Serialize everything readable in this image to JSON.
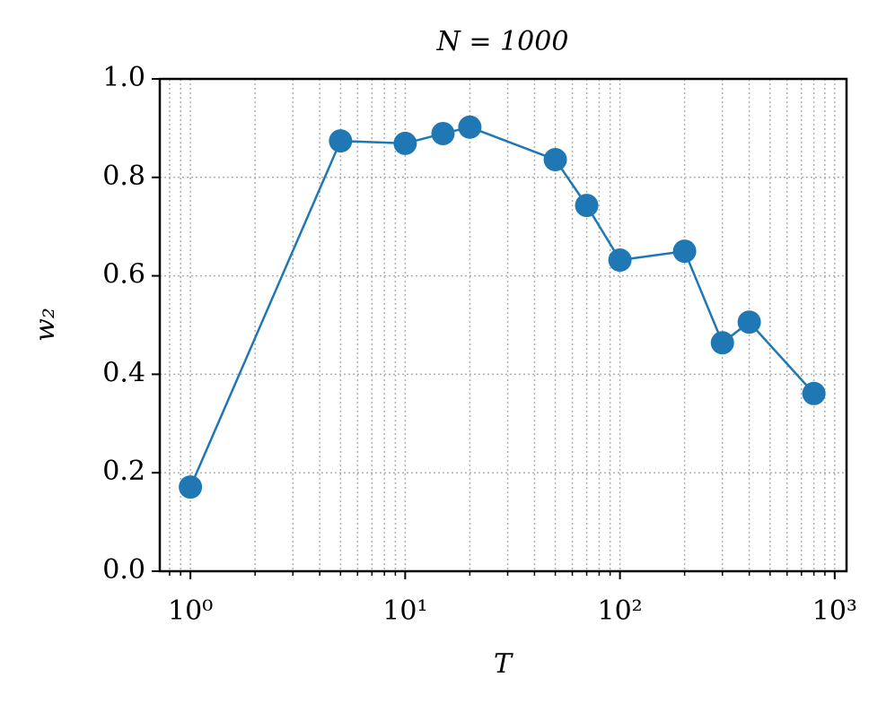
{
  "chart_data": {
    "type": "line",
    "title": "N = 1000",
    "x_label": "T",
    "y_label": "w₂",
    "x": [
      1,
      5,
      10,
      15,
      20,
      50,
      70,
      100,
      200,
      300,
      400,
      800
    ],
    "series": [
      {
        "color": "#1f77b4",
        "values": [
          0.171,
          0.874,
          0.869,
          0.889,
          0.902,
          0.836,
          0.743,
          0.632,
          0.65,
          0.464,
          0.506,
          0.361
        ]
      }
    ],
    "x_scale": "log",
    "xlim": [
      0.72,
      1135
    ],
    "xticks": [
      {
        "value": 1,
        "label": "10⁰"
      },
      {
        "value": 10,
        "label": "10¹"
      },
      {
        "value": 100,
        "label": "10²"
      },
      {
        "value": 1000,
        "label": "10³"
      }
    ],
    "minor_xticks": [
      0.8,
      0.9,
      2,
      3,
      4,
      5,
      6,
      7,
      8,
      9,
      20,
      30,
      40,
      50,
      60,
      70,
      80,
      90,
      200,
      300,
      400,
      500,
      600,
      700,
      800,
      900
    ],
    "ylim": [
      0,
      1
    ],
    "yticks": [
      {
        "value": 0,
        "label": "0.0"
      },
      {
        "value": 0.2,
        "label": "0.2"
      },
      {
        "value": 0.4,
        "label": "0.4"
      },
      {
        "value": 0.6,
        "label": "0.6"
      },
      {
        "value": 0.8,
        "label": "0.8"
      },
      {
        "value": 1,
        "label": "1.0"
      }
    ],
    "grid": true
  }
}
